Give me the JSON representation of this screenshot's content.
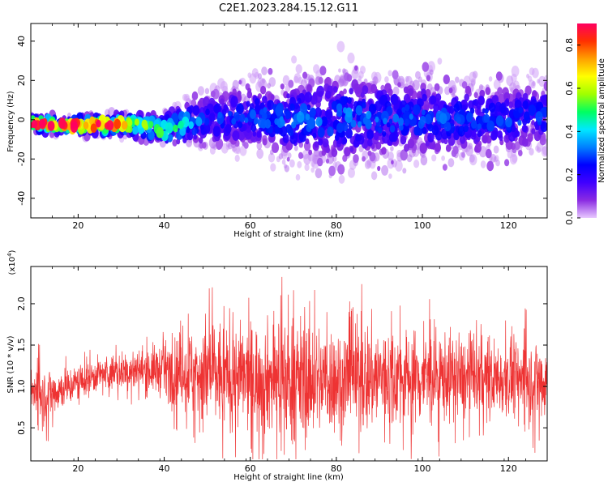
{
  "figure": {
    "title": "C2E1.2023.284.15.12.G11"
  },
  "colormap": {
    "stops": [
      "#e8c8ff",
      "#8a2be2",
      "#4000ff",
      "#0000ff",
      "#0080ff",
      "#00e8ff",
      "#00ff60",
      "#a0ff00",
      "#ffff00",
      "#ffa000",
      "#ff3000",
      "#ff0060"
    ]
  },
  "chart_data": [
    {
      "type": "heatmap",
      "xlabel": "Height of straight line (km)",
      "ylabel": "Frequency (Hz)",
      "xlim": [
        9,
        129
      ],
      "ylim": [
        -50,
        49
      ],
      "xticks": [
        20,
        40,
        60,
        80,
        100,
        120
      ],
      "yticks": [
        -40,
        -20,
        0,
        20,
        40
      ],
      "colorbar": {
        "label": "Normalized spectral amplitude",
        "range": [
          0.0,
          0.9
        ],
        "ticks": [
          "0.0",
          "0.2",
          "0.4",
          "0.6",
          "0.8"
        ]
      },
      "description_values": {
        "band_center_hz": [
          [
            10,
            -2
          ],
          [
            20,
            -3
          ],
          [
            30,
            -2
          ],
          [
            40,
            -5
          ],
          [
            50,
            0
          ],
          [
            60,
            2
          ],
          [
            70,
            0
          ],
          [
            80,
            1
          ],
          [
            90,
            0
          ],
          [
            100,
            1
          ],
          [
            110,
            0
          ],
          [
            120,
            0
          ],
          [
            129,
            3
          ]
        ],
        "band_halfwidth_hz": [
          [
            10,
            3
          ],
          [
            30,
            4
          ],
          [
            40,
            6
          ],
          [
            50,
            10
          ],
          [
            70,
            14
          ],
          [
            80,
            16
          ],
          [
            100,
            14
          ],
          [
            120,
            12
          ],
          [
            129,
            12
          ]
        ],
        "peak_amplitude": [
          [
            10,
            0.85
          ],
          [
            25,
            0.85
          ],
          [
            35,
            0.55
          ],
          [
            40,
            0.5
          ],
          [
            50,
            0.25
          ],
          [
            80,
            0.3
          ],
          [
            129,
            0.25
          ]
        ]
      }
    },
    {
      "type": "line",
      "xlabel": "Height of straight line (km)",
      "ylabel": "SNR (10 * v/v)",
      "yexp": "(x10",
      "yexp_power": "4",
      "yexp_close": ")",
      "xlim": [
        9,
        129
      ],
      "ylim": [
        0.1,
        2.45
      ],
      "xticks": [
        20,
        40,
        60,
        80,
        100,
        120
      ],
      "yticks": [
        0.5,
        1.0,
        1.5,
        2.0
      ],
      "ytick_labels": [
        "0.5",
        "1.0",
        "1.5",
        "2.0"
      ],
      "series": [
        {
          "color": "#ee3333",
          "envelope": {
            "x": [
              9,
              12,
              15,
              18,
              20,
              25,
              30,
              35,
              40,
              45,
              50,
              55,
              60,
              65,
              70,
              75,
              80,
              85,
              90,
              95,
              100,
              105,
              110,
              115,
              120,
              125,
              129
            ],
            "mean": [
              0.95,
              0.9,
              0.95,
              1.0,
              1.05,
              1.15,
              1.18,
              1.2,
              1.2,
              1.18,
              1.15,
              1.12,
              1.1,
              1.1,
              1.08,
              1.08,
              1.08,
              1.1,
              1.12,
              1.12,
              1.1,
              1.12,
              1.1,
              1.1,
              1.1,
              1.1,
              1.08
            ],
            "amp": [
              0.35,
              0.4,
              0.3,
              0.25,
              0.25,
              0.22,
              0.25,
              0.3,
              0.35,
              0.55,
              0.75,
              0.7,
              0.7,
              0.75,
              0.85,
              0.75,
              0.7,
              0.8,
              0.7,
              0.65,
              0.65,
              0.6,
              0.55,
              0.5,
              0.5,
              0.55,
              0.6
            ]
          }
        }
      ]
    }
  ]
}
